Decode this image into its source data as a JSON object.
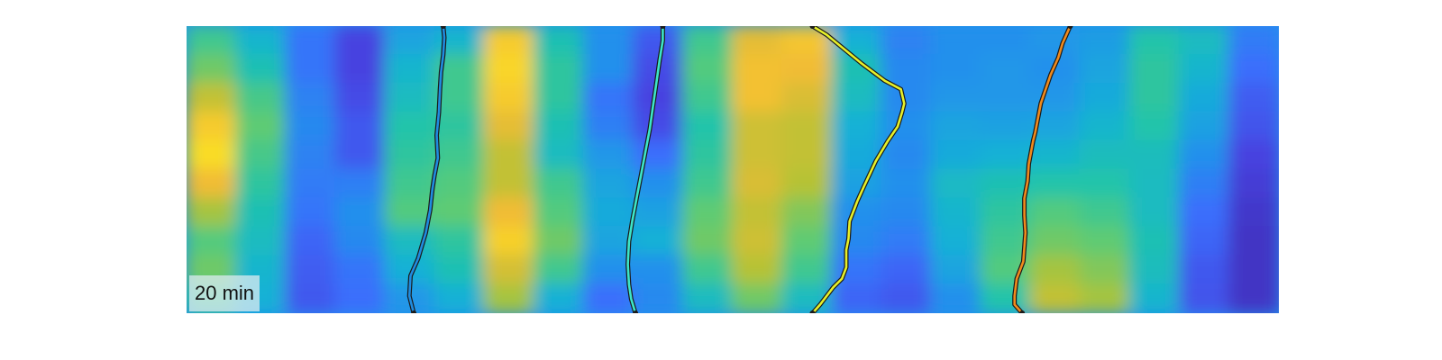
{
  "colors": {
    "colormap": [
      "#3e26a8",
      "#4743e0",
      "#3b6efc",
      "#2390ec",
      "#17b1d6",
      "#20c4aa",
      "#5fcb73",
      "#b6c234",
      "#f1bc36",
      "#f9d529",
      "#f9fb15"
    ],
    "track_outline": "#1a1a1a"
  },
  "chart_data": {
    "type": "heatmap",
    "label": "20 min",
    "xlim": [
      0,
      1
    ],
    "ylim": [
      0,
      1
    ],
    "heat_columns": [
      [
        0.55,
        0.62,
        0.72,
        0.86,
        0.92,
        0.8,
        0.68,
        0.58,
        0.62,
        0.55
      ],
      [
        0.42,
        0.48,
        0.56,
        0.6,
        0.56,
        0.52,
        0.48,
        0.45,
        0.42,
        0.4
      ],
      [
        0.22,
        0.22,
        0.26,
        0.28,
        0.26,
        0.24,
        0.22,
        0.18,
        0.16,
        0.15
      ],
      [
        0.1,
        0.1,
        0.12,
        0.15,
        0.15,
        0.25,
        0.3,
        0.28,
        0.22,
        0.2
      ],
      [
        0.36,
        0.42,
        0.45,
        0.5,
        0.52,
        0.55,
        0.58,
        0.45,
        0.4,
        0.32
      ],
      [
        0.42,
        0.55,
        0.55,
        0.52,
        0.55,
        0.58,
        0.6,
        0.52,
        0.48,
        0.4
      ],
      [
        0.86,
        0.9,
        0.86,
        0.78,
        0.72,
        0.72,
        0.8,
        0.88,
        0.75,
        0.68
      ],
      [
        0.48,
        0.52,
        0.52,
        0.48,
        0.45,
        0.55,
        0.58,
        0.62,
        0.55,
        0.4
      ],
      [
        0.3,
        0.3,
        0.22,
        0.25,
        0.32,
        0.36,
        0.38,
        0.36,
        0.3,
        0.2
      ],
      [
        0.15,
        0.12,
        0.1,
        0.12,
        0.2,
        0.3,
        0.35,
        0.4,
        0.3,
        0.28
      ],
      [
        0.55,
        0.58,
        0.55,
        0.5,
        0.52,
        0.55,
        0.6,
        0.62,
        0.55,
        0.45
      ],
      [
        0.78,
        0.82,
        0.82,
        0.74,
        0.74,
        0.76,
        0.72,
        0.74,
        0.7,
        0.62
      ],
      [
        0.84,
        0.8,
        0.76,
        0.72,
        0.72,
        0.7,
        0.64,
        0.6,
        0.55,
        0.45
      ],
      [
        0.4,
        0.48,
        0.45,
        0.4,
        0.38,
        0.35,
        0.3,
        0.28,
        0.22,
        0.18
      ],
      [
        0.26,
        0.28,
        0.28,
        0.3,
        0.28,
        0.3,
        0.28,
        0.24,
        0.18,
        0.15
      ],
      [
        0.3,
        0.3,
        0.32,
        0.36,
        0.38,
        0.44,
        0.42,
        0.4,
        0.36,
        0.3
      ],
      [
        0.3,
        0.32,
        0.32,
        0.35,
        0.4,
        0.48,
        0.52,
        0.55,
        0.58,
        0.5
      ],
      [
        0.32,
        0.3,
        0.32,
        0.36,
        0.42,
        0.5,
        0.58,
        0.62,
        0.68,
        0.72
      ],
      [
        0.34,
        0.36,
        0.38,
        0.42,
        0.46,
        0.5,
        0.55,
        0.6,
        0.64,
        0.68
      ],
      [
        0.5,
        0.52,
        0.52,
        0.5,
        0.46,
        0.45,
        0.45,
        0.48,
        0.46,
        0.42
      ],
      [
        0.45,
        0.42,
        0.38,
        0.35,
        0.3,
        0.25,
        0.2,
        0.18,
        0.15,
        0.14
      ],
      [
        0.24,
        0.2,
        0.16,
        0.14,
        0.1,
        0.08,
        0.06,
        0.05,
        0.05,
        0.05
      ]
    ],
    "series": [
      {
        "color": "#1f8ce0",
        "x": [
          0.235,
          0.236,
          0.235,
          0.233,
          0.232,
          0.231,
          0.229,
          0.23,
          0.227,
          0.225,
          0.223,
          0.219,
          0.212,
          0.205,
          0.204,
          0.208
        ],
        "y": [
          0.0,
          0.04,
          0.1,
          0.16,
          0.22,
          0.3,
          0.38,
          0.46,
          0.52,
          0.57,
          0.64,
          0.72,
          0.81,
          0.87,
          0.94,
          1.0
        ]
      },
      {
        "color": "#3ce6c8",
        "x": [
          0.436,
          0.436,
          0.433,
          0.43,
          0.427,
          0.424,
          0.42,
          0.416,
          0.412,
          0.408,
          0.405,
          0.404,
          0.405,
          0.407,
          0.411
        ],
        "y": [
          0.0,
          0.05,
          0.12,
          0.2,
          0.28,
          0.36,
          0.44,
          0.52,
          0.6,
          0.68,
          0.75,
          0.83,
          0.9,
          0.95,
          1.0
        ]
      },
      {
        "color": "#e6f029",
        "x": [
          0.573,
          0.58,
          0.592,
          0.6,
          0.604,
          0.604,
          0.606,
          0.607,
          0.614,
          0.62,
          0.631,
          0.642,
          0.651,
          0.655,
          0.657,
          0.654,
          0.639,
          0.618,
          0.586,
          0.573
        ],
        "y": [
          1.0,
          0.97,
          0.91,
          0.88,
          0.84,
          0.78,
          0.74,
          0.68,
          0.61,
          0.56,
          0.47,
          0.4,
          0.35,
          0.3,
          0.27,
          0.22,
          0.19,
          0.13,
          0.03,
          0.0
        ]
      },
      {
        "color": "#f08a1c",
        "x": [
          0.809,
          0.802,
          0.798,
          0.791,
          0.782,
          0.779,
          0.777,
          0.775,
          0.771,
          0.77,
          0.767,
          0.767,
          0.768,
          0.766,
          0.76,
          0.758,
          0.758,
          0.765
        ],
        "y": [
          0.0,
          0.06,
          0.11,
          0.17,
          0.27,
          0.33,
          0.37,
          0.4,
          0.48,
          0.54,
          0.6,
          0.66,
          0.72,
          0.82,
          0.88,
          0.94,
          0.97,
          1.0
        ]
      }
    ]
  }
}
